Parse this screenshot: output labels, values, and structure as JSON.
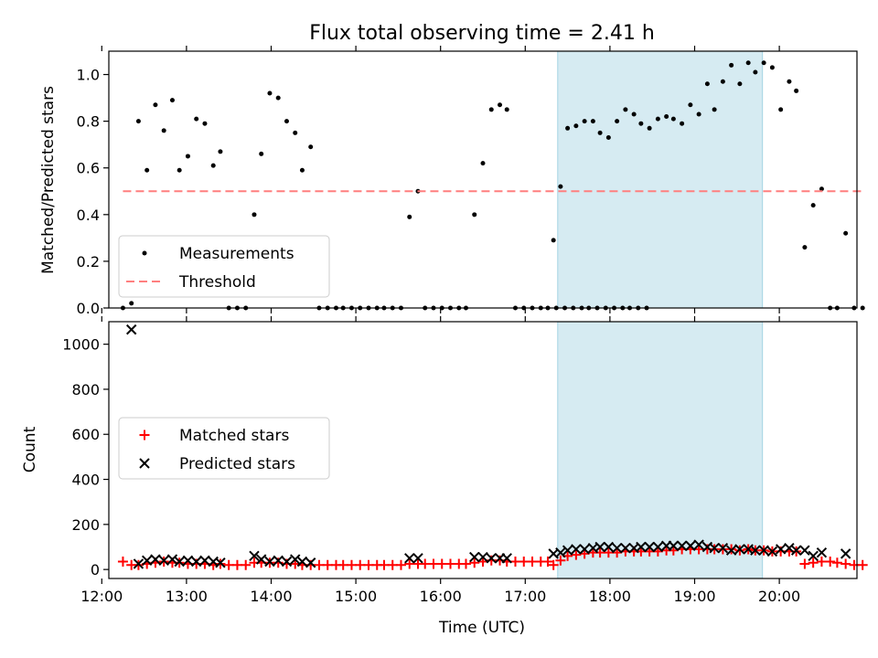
{
  "title": "Flux total observing time = 2.41 h",
  "xlabel": "Time (UTC)",
  "chart_data": [
    {
      "type": "scatter",
      "ylabel": "Matched/Predicted stars",
      "xlim": [
        "12:05",
        "20:55"
      ],
      "ylim": [
        0,
        1.1
      ],
      "yticks": [
        "0.0",
        "0.2",
        "0.4",
        "0.6",
        "0.8",
        "1.0"
      ],
      "xticks": [
        "12:00",
        "13:00",
        "14:00",
        "15:00",
        "16:00",
        "17:00",
        "18:00",
        "19:00",
        "20:00"
      ],
      "highlight_span": [
        "17:23",
        "19:48"
      ],
      "legend_position": "lower-left",
      "series": [
        {
          "name": "Measurements",
          "marker": "dot",
          "color": "#000000",
          "points": [
            [
              "12:15",
              0.0
            ],
            [
              "12:21",
              0.02
            ],
            [
              "12:26",
              0.8
            ],
            [
              "12:32",
              0.59
            ],
            [
              "12:38",
              0.87
            ],
            [
              "12:44",
              0.76
            ],
            [
              "12:50",
              0.89
            ],
            [
              "12:55",
              0.59
            ],
            [
              "13:01",
              0.65
            ],
            [
              "13:07",
              0.81
            ],
            [
              "13:13",
              0.79
            ],
            [
              "13:19",
              0.61
            ],
            [
              "13:24",
              0.67
            ],
            [
              "13:30",
              0.0
            ],
            [
              "13:36",
              0.0
            ],
            [
              "13:42",
              0.0
            ],
            [
              "13:48",
              0.4
            ],
            [
              "13:53",
              0.66
            ],
            [
              "13:59",
              0.92
            ],
            [
              "14:05",
              0.9
            ],
            [
              "14:11",
              0.8
            ],
            [
              "14:17",
              0.75
            ],
            [
              "14:22",
              0.59
            ],
            [
              "14:28",
              0.69
            ],
            [
              "14:34",
              0.0
            ],
            [
              "14:40",
              0.0
            ],
            [
              "14:46",
              0.0
            ],
            [
              "14:51",
              0.0
            ],
            [
              "14:57",
              0.0
            ],
            [
              "15:03",
              0.0
            ],
            [
              "15:09",
              0.0
            ],
            [
              "15:15",
              0.0
            ],
            [
              "15:20",
              0.0
            ],
            [
              "15:26",
              0.0
            ],
            [
              "15:32",
              0.0
            ],
            [
              "15:38",
              0.39
            ],
            [
              "15:44",
              0.5
            ],
            [
              "15:49",
              0.0
            ],
            [
              "15:55",
              0.0
            ],
            [
              "16:01",
              0.0
            ],
            [
              "16:07",
              0.0
            ],
            [
              "16:13",
              0.0
            ],
            [
              "16:18",
              0.0
            ],
            [
              "16:24",
              0.4
            ],
            [
              "16:30",
              0.62
            ],
            [
              "16:36",
              0.85
            ],
            [
              "16:42",
              0.87
            ],
            [
              "16:47",
              0.85
            ],
            [
              "16:53",
              0.0
            ],
            [
              "16:59",
              0.0
            ],
            [
              "17:05",
              0.0
            ],
            [
              "17:11",
              0.0
            ],
            [
              "17:16",
              0.0
            ],
            [
              "17:22",
              0.0
            ],
            [
              "17:28",
              0.0
            ],
            [
              "17:34",
              0.0
            ],
            [
              "17:40",
              0.0
            ],
            [
              "17:45",
              0.0
            ],
            [
              "17:51",
              0.0
            ],
            [
              "17:57",
              0.0
            ],
            [
              "18:03",
              0.0
            ],
            [
              "18:09",
              0.0
            ],
            [
              "18:14",
              0.0
            ],
            [
              "18:20",
              0.0
            ],
            [
              "18:26",
              0.0
            ],
            [
              "17:20",
              0.29
            ],
            [
              "17:25",
              0.52
            ],
            [
              "17:30",
              0.77
            ],
            [
              "17:36",
              0.78
            ],
            [
              "17:42",
              0.8
            ],
            [
              "17:48",
              0.8
            ],
            [
              "17:53",
              0.75
            ],
            [
              "17:59",
              0.73
            ],
            [
              "18:05",
              0.8
            ],
            [
              "18:11",
              0.85
            ],
            [
              "18:17",
              0.83
            ],
            [
              "18:22",
              0.79
            ],
            [
              "18:28",
              0.77
            ],
            [
              "18:34",
              0.81
            ],
            [
              "18:40",
              0.82
            ],
            [
              "18:45",
              0.81
            ],
            [
              "18:51",
              0.79
            ],
            [
              "18:57",
              0.87
            ],
            [
              "19:03",
              0.83
            ],
            [
              "19:09",
              0.96
            ],
            [
              "19:14",
              0.85
            ],
            [
              "19:20",
              0.97
            ],
            [
              "19:26",
              1.04
            ],
            [
              "19:32",
              0.96
            ],
            [
              "19:38",
              1.05
            ],
            [
              "19:43",
              1.01
            ],
            [
              "19:49",
              1.05
            ],
            [
              "19:55",
              1.03
            ],
            [
              "20:01",
              0.85
            ],
            [
              "20:07",
              0.97
            ],
            [
              "20:12",
              0.93
            ],
            [
              "20:18",
              0.26
            ],
            [
              "20:24",
              0.44
            ],
            [
              "20:30",
              0.51
            ],
            [
              "20:36",
              0.0
            ],
            [
              "20:41",
              0.0
            ],
            [
              "20:47",
              0.32
            ],
            [
              "20:53",
              0.0
            ],
            [
              "20:59",
              0.0
            ]
          ]
        },
        {
          "name": "Threshold",
          "marker": "dashed-line",
          "color": "#ff7f7f",
          "x": [
            "12:15",
            "20:59"
          ],
          "y": [
            0.5,
            0.5
          ]
        }
      ]
    },
    {
      "type": "scatter",
      "ylabel": "Count",
      "xlim": [
        "12:05",
        "20:55"
      ],
      "ylim": [
        -40,
        1100
      ],
      "yticks": [
        "0",
        "200",
        "400",
        "600",
        "800",
        "1000"
      ],
      "xticks": [
        "12:00",
        "13:00",
        "14:00",
        "15:00",
        "16:00",
        "17:00",
        "18:00",
        "19:00",
        "20:00"
      ],
      "highlight_span": [
        "17:23",
        "19:48"
      ],
      "legend_position": "center-left",
      "series": [
        {
          "name": "Matched stars",
          "marker": "plus",
          "color": "#ff0000",
          "points": [
            [
              "12:15",
              35
            ],
            [
              "12:21",
              20
            ],
            [
              "12:26",
              20
            ],
            [
              "12:32",
              25
            ],
            [
              "12:38",
              30
            ],
            [
              "12:44",
              35
            ],
            [
              "12:50",
              30
            ],
            [
              "12:55",
              30
            ],
            [
              "13:01",
              25
            ],
            [
              "13:07",
              25
            ],
            [
              "13:13",
              25
            ],
            [
              "13:19",
              20
            ],
            [
              "13:24",
              25
            ],
            [
              "13:30",
              20
            ],
            [
              "13:36",
              20
            ],
            [
              "13:42",
              20
            ],
            [
              "13:48",
              30
            ],
            [
              "13:53",
              30
            ],
            [
              "13:59",
              30
            ],
            [
              "14:05",
              30
            ],
            [
              "14:11",
              25
            ],
            [
              "14:17",
              25
            ],
            [
              "14:22",
              20
            ],
            [
              "14:28",
              20
            ],
            [
              "14:34",
              20
            ],
            [
              "14:40",
              20
            ],
            [
              "14:46",
              20
            ],
            [
              "14:51",
              20
            ],
            [
              "14:57",
              20
            ],
            [
              "15:03",
              20
            ],
            [
              "15:09",
              20
            ],
            [
              "15:15",
              20
            ],
            [
              "15:20",
              20
            ],
            [
              "15:26",
              20
            ],
            [
              "15:32",
              20
            ],
            [
              "15:38",
              25
            ],
            [
              "15:44",
              25
            ],
            [
              "15:49",
              25
            ],
            [
              "15:55",
              25
            ],
            [
              "16:01",
              25
            ],
            [
              "16:07",
              25
            ],
            [
              "16:13",
              25
            ],
            [
              "16:18",
              25
            ],
            [
              "16:24",
              30
            ],
            [
              "16:30",
              35
            ],
            [
              "16:36",
              40
            ],
            [
              "16:42",
              40
            ],
            [
              "16:47",
              35
            ],
            [
              "16:53",
              35
            ],
            [
              "16:59",
              35
            ],
            [
              "17:05",
              35
            ],
            [
              "17:11",
              35
            ],
            [
              "17:16",
              35
            ],
            [
              "17:20",
              20
            ],
            [
              "17:25",
              40
            ],
            [
              "17:30",
              60
            ],
            [
              "17:36",
              65
            ],
            [
              "17:42",
              70
            ],
            [
              "17:48",
              75
            ],
            [
              "17:53",
              75
            ],
            [
              "17:59",
              75
            ],
            [
              "18:05",
              75
            ],
            [
              "18:11",
              80
            ],
            [
              "18:17",
              80
            ],
            [
              "18:22",
              80
            ],
            [
              "18:28",
              80
            ],
            [
              "18:34",
              80
            ],
            [
              "18:40",
              85
            ],
            [
              "18:45",
              85
            ],
            [
              "18:51",
              90
            ],
            [
              "18:57",
              90
            ],
            [
              "19:03",
              90
            ],
            [
              "19:09",
              90
            ],
            [
              "19:14",
              90
            ],
            [
              "19:20",
              90
            ],
            [
              "19:26",
              90
            ],
            [
              "19:32",
              85
            ],
            [
              "19:38",
              90
            ],
            [
              "19:43",
              85
            ],
            [
              "19:49",
              85
            ],
            [
              "19:55",
              80
            ],
            [
              "20:01",
              80
            ],
            [
              "20:07",
              80
            ],
            [
              "20:12",
              80
            ],
            [
              "20:18",
              25
            ],
            [
              "20:24",
              30
            ],
            [
              "20:30",
              35
            ],
            [
              "20:36",
              35
            ],
            [
              "20:41",
              30
            ],
            [
              "20:47",
              25
            ],
            [
              "20:53",
              20
            ],
            [
              "20:59",
              20
            ]
          ]
        },
        {
          "name": "Predicted stars",
          "marker": "x",
          "color": "#000000",
          "points": [
            [
              "12:21",
              1065
            ],
            [
              "12:26",
              25
            ],
            [
              "12:32",
              40
            ],
            [
              "12:38",
              45
            ],
            [
              "12:44",
              40
            ],
            [
              "12:50",
              45
            ],
            [
              "12:55",
              35
            ],
            [
              "13:01",
              40
            ],
            [
              "13:07",
              35
            ],
            [
              "13:13",
              40
            ],
            [
              "13:19",
              35
            ],
            [
              "13:24",
              30
            ],
            [
              "13:48",
              60
            ],
            [
              "13:53",
              45
            ],
            [
              "13:59",
              35
            ],
            [
              "14:05",
              40
            ],
            [
              "14:11",
              35
            ],
            [
              "14:17",
              45
            ],
            [
              "14:22",
              35
            ],
            [
              "14:28",
              30
            ],
            [
              "15:38",
              50
            ],
            [
              "15:44",
              50
            ],
            [
              "16:24",
              55
            ],
            [
              "16:30",
              55
            ],
            [
              "16:36",
              50
            ],
            [
              "16:42",
              50
            ],
            [
              "16:47",
              50
            ],
            [
              "17:20",
              70
            ],
            [
              "17:25",
              75
            ],
            [
              "17:30",
              85
            ],
            [
              "17:36",
              90
            ],
            [
              "17:42",
              90
            ],
            [
              "17:48",
              95
            ],
            [
              "17:53",
              100
            ],
            [
              "17:59",
              100
            ],
            [
              "18:05",
              95
            ],
            [
              "18:11",
              95
            ],
            [
              "18:17",
              95
            ],
            [
              "18:22",
              100
            ],
            [
              "18:28",
              100
            ],
            [
              "18:34",
              100
            ],
            [
              "18:40",
              105
            ],
            [
              "18:45",
              105
            ],
            [
              "18:51",
              105
            ],
            [
              "18:57",
              105
            ],
            [
              "19:03",
              110
            ],
            [
              "19:09",
              100
            ],
            [
              "19:14",
              95
            ],
            [
              "19:20",
              95
            ],
            [
              "19:26",
              85
            ],
            [
              "19:32",
              90
            ],
            [
              "19:38",
              90
            ],
            [
              "19:43",
              85
            ],
            [
              "19:49",
              85
            ],
            [
              "19:55",
              80
            ],
            [
              "20:01",
              90
            ],
            [
              "20:07",
              95
            ],
            [
              "20:12",
              85
            ],
            [
              "20:18",
              85
            ],
            [
              "20:24",
              60
            ],
            [
              "20:30",
              75
            ],
            [
              "20:47",
              70
            ]
          ]
        }
      ]
    }
  ]
}
